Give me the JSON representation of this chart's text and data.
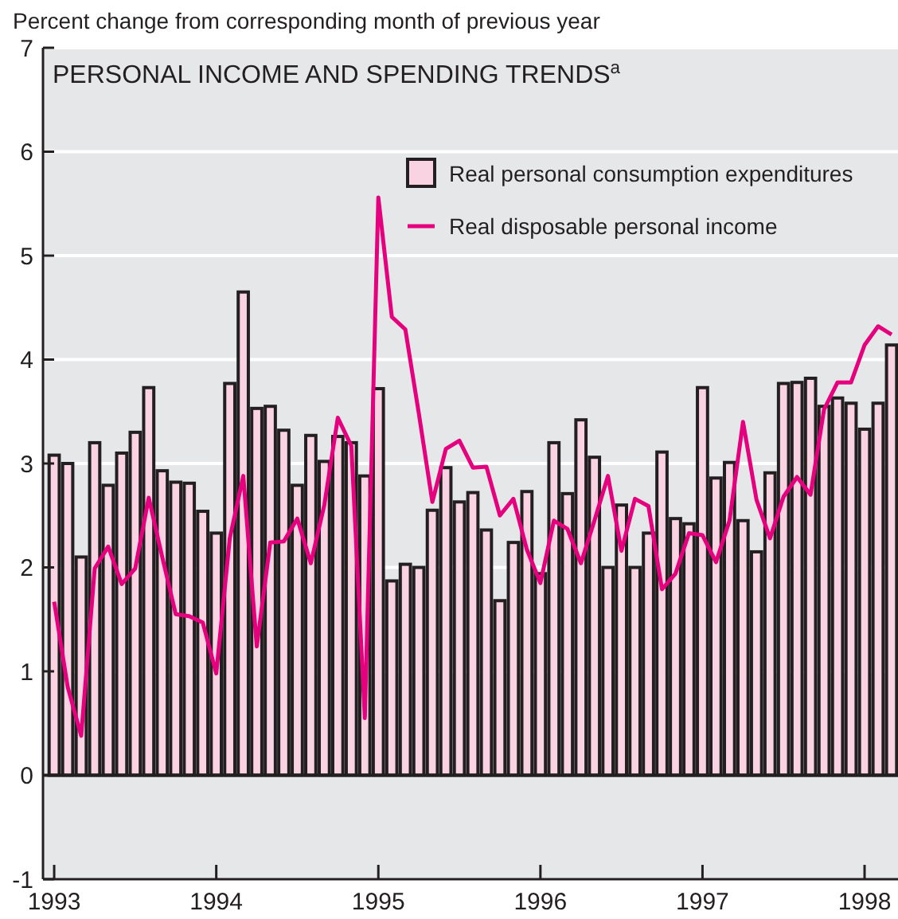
{
  "chart_data": {
    "type": "bar",
    "title": "PERSONAL INCOME AND SPENDING TRENDS$^{a}$",
    "ylabel": "Percent change from corresponding month of previous year",
    "categories": [
      "1993",
      null,
      null,
      null,
      null,
      null,
      null,
      null,
      null,
      null,
      null,
      null,
      "1994",
      null,
      null,
      null,
      null,
      null,
      null,
      null,
      null,
      null,
      null,
      null,
      "1995",
      null,
      null,
      null,
      null,
      null,
      null,
      null,
      null,
      null,
      null,
      null,
      "1996",
      null,
      null,
      null,
      null,
      null,
      null,
      null,
      null,
      null,
      null,
      null,
      "1997",
      null,
      null,
      null,
      null,
      null,
      null,
      null,
      null,
      null,
      null,
      null,
      "1998",
      null,
      null
    ],
    "series": [
      {
        "name": "Real personal consumption expenditures",
        "color": "#f9d3e2",
        "values": [
          3.08,
          3.0,
          2.1,
          3.2,
          2.79,
          3.1,
          3.3,
          3.73,
          2.93,
          2.82,
          2.81,
          2.54,
          2.33,
          3.77,
          4.65,
          3.53,
          3.55,
          3.32,
          2.79,
          3.27,
          3.02,
          3.26,
          3.2,
          2.88,
          3.72,
          1.87,
          2.03,
          2.0,
          2.55,
          2.96,
          2.63,
          2.72,
          2.36,
          1.68,
          2.24,
          2.73,
          1.94,
          3.2,
          2.71,
          3.42,
          3.06,
          2.0,
          2.6,
          2.0,
          2.33,
          3.11,
          2.47,
          2.42,
          3.73,
          2.86,
          3.01,
          2.45,
          2.15,
          2.91,
          3.77,
          3.78,
          3.82,
          3.55,
          3.63,
          3.58,
          3.33,
          3.58,
          4.14
        ]
      },
      {
        "name": "Real disposable personal income",
        "type": "line",
        "color": "#e5007d",
        "values": [
          1.67,
          0.85,
          0.38,
          1.99,
          2.2,
          1.84,
          1.99,
          2.67,
          2.1,
          1.55,
          1.53,
          1.47,
          0.98,
          2.28,
          2.88,
          1.24,
          2.24,
          2.25,
          2.47,
          2.04,
          2.6,
          3.44,
          3.17,
          0.55,
          5.56,
          4.41,
          4.29,
          3.48,
          2.63,
          3.14,
          3.22,
          2.96,
          2.97,
          2.5,
          2.66,
          2.17,
          1.85,
          2.45,
          2.37,
          2.04,
          2.45,
          2.88,
          2.16,
          2.66,
          2.59,
          1.79,
          1.94,
          2.33,
          2.31,
          2.05,
          2.45,
          3.4,
          2.65,
          2.28,
          2.68,
          2.87,
          2.7,
          3.52,
          3.78,
          3.78,
          4.14,
          4.32,
          4.24
        ]
      }
    ],
    "ylim": [
      -1,
      7
    ],
    "yticks": [
      -1,
      0,
      1,
      2,
      3,
      4,
      5,
      6,
      7
    ],
    "grid": "y",
    "legend": "top right"
  }
}
